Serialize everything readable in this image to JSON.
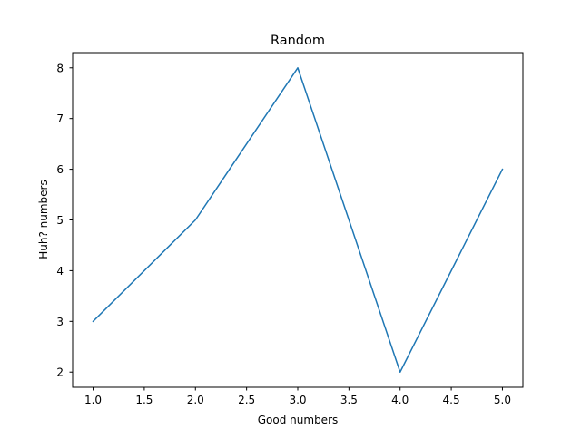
{
  "chart_data": {
    "type": "line",
    "title": "Random",
    "xlabel": "Good numbers",
    "ylabel": "Huh? numbers",
    "x": [
      1,
      2,
      3,
      4,
      5
    ],
    "series": [
      {
        "values": [
          3,
          5,
          8,
          2,
          6
        ],
        "color": "#1f77b4"
      }
    ],
    "xlim": [
      0.8,
      5.2
    ],
    "ylim": [
      1.7,
      8.3
    ],
    "xticks": [
      "1.0",
      "1.5",
      "2.0",
      "2.5",
      "3.0",
      "3.5",
      "4.0",
      "4.5",
      "5.0"
    ],
    "yticks": [
      "2",
      "3",
      "4",
      "5",
      "6",
      "7",
      "8"
    ],
    "grid": false,
    "legend": false
  }
}
